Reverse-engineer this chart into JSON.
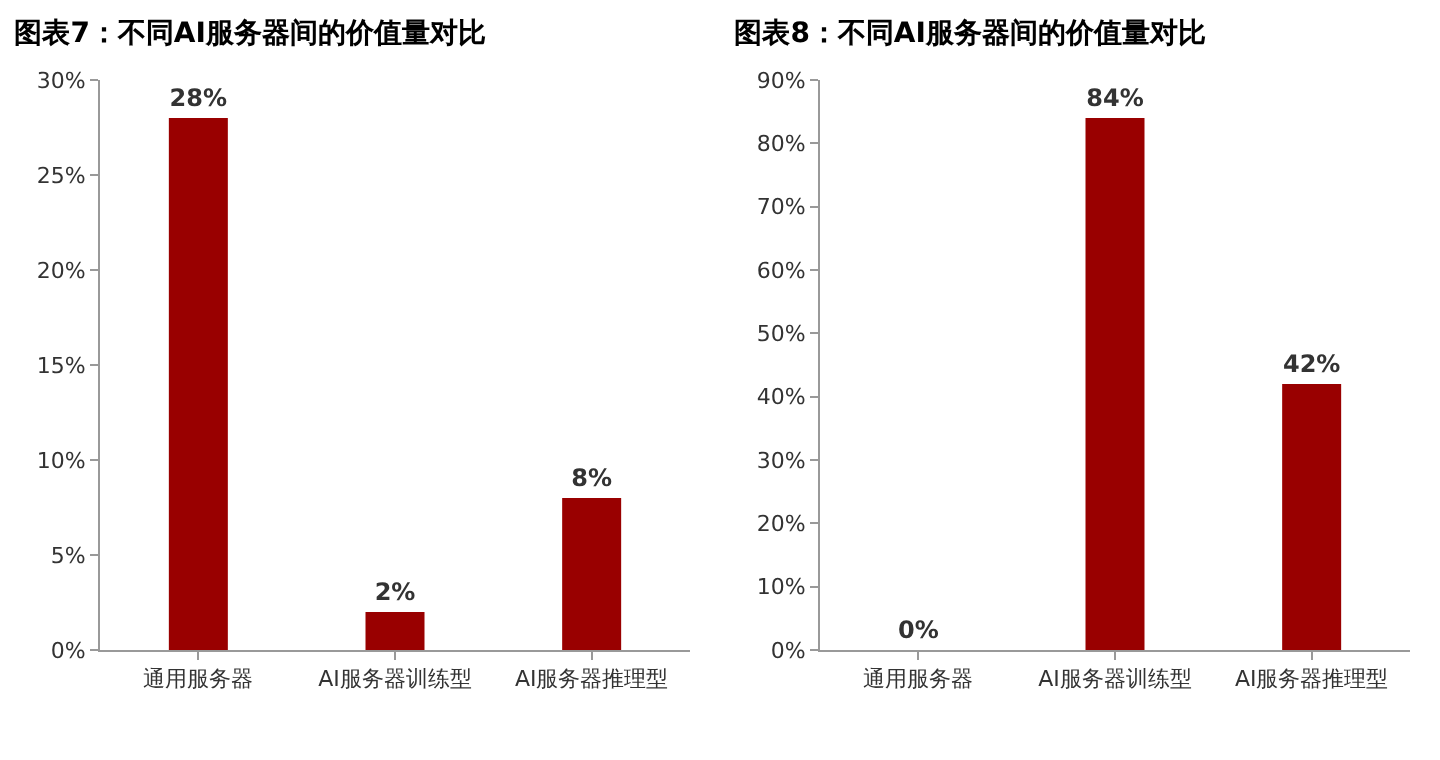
{
  "chart_data": [
    {
      "type": "bar",
      "title": "图表7：不同AI服务器间的价值量对比",
      "categories": [
        "通用服务器",
        "AI服务器训练型",
        "AI服务器推理型"
      ],
      "series": [
        {
          "color": "#990000",
          "values": [
            28,
            2,
            8
          ],
          "value_labels": [
            "28%",
            "2%",
            "8%"
          ]
        }
      ],
      "ylim": [
        0,
        30
      ],
      "yticks": [
        {
          "value": 0,
          "label": "0%"
        },
        {
          "value": 5,
          "label": "5%"
        },
        {
          "value": 10,
          "label": "10%"
        },
        {
          "value": 15,
          "label": "15%"
        },
        {
          "value": 20,
          "label": "20%"
        },
        {
          "value": 25,
          "label": "25%"
        },
        {
          "value": 30,
          "label": "30%"
        }
      ],
      "grid": false
    },
    {
      "type": "bar",
      "title": "图表8：不同AI服务器间的价值量对比",
      "categories": [
        "通用服务器",
        "AI服务器训练型",
        "AI服务器推理型"
      ],
      "series": [
        {
          "color": "#990000",
          "values": [
            0,
            84,
            42
          ],
          "value_labels": [
            "0%",
            "84%",
            "42%"
          ]
        }
      ],
      "ylim": [
        0,
        90
      ],
      "yticks": [
        {
          "value": 0,
          "label": "0%"
        },
        {
          "value": 10,
          "label": "10%"
        },
        {
          "value": 20,
          "label": "20%"
        },
        {
          "value": 30,
          "label": "30%"
        },
        {
          "value": 40,
          "label": "40%"
        },
        {
          "value": 50,
          "label": "50%"
        },
        {
          "value": 60,
          "label": "60%"
        },
        {
          "value": 70,
          "label": "70%"
        },
        {
          "value": 80,
          "label": "80%"
        },
        {
          "value": 90,
          "label": "90%"
        }
      ],
      "grid": false
    }
  ]
}
